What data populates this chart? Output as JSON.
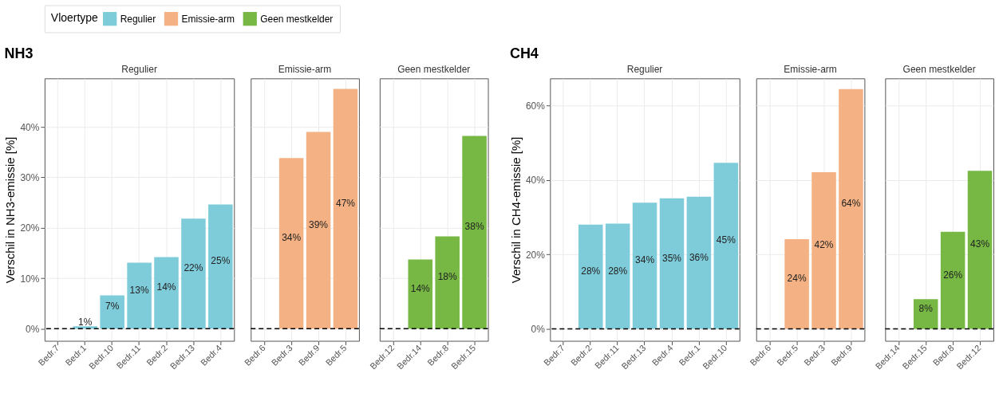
{
  "chart_data": [
    {
      "type": "bar",
      "title": "NH3",
      "ylabel": "Verschil in NH3-emissie [%]",
      "legend": "top",
      "legend_title": "Vloertype",
      "grid": true,
      "categories": [
        "Bedr.7",
        "Bedr.1",
        "Bedr.10",
        "Bedr.11",
        "Bedr.2",
        "Bedr.13",
        "Bedr.4"
      ],
      "series": [
        {
          "name": "Regulier",
          "color": "#7ecbd9",
          "values": [
            null,
            0.5,
            6.6,
            13.1,
            14.2,
            21.8,
            24.6
          ],
          "value_labels": [
            null,
            "1%",
            "7%",
            "13%",
            "14%",
            "22%",
            "25%"
          ]
        }
      ],
      "ylim": [
        -2.4,
        49.6
      ],
      "yticks": [
        {
          "value": 0,
          "label": "0%"
        },
        {
          "value": 10,
          "label": "10%"
        },
        {
          "value": 20,
          "label": "20%"
        },
        {
          "value": 30,
          "label": "30%"
        },
        {
          "value": 40,
          "label": "40%"
        }
      ],
      "ref_lines": [
        {
          "axis": "y",
          "value": 0,
          "color": "#000000",
          "line_style": "dashed"
        }
      ]
    },
    {
      "type": "bar",
      "grid": true,
      "tick_labels": "x",
      "categories": [
        "Bedr.6",
        "Bedr.3",
        "Bedr.9",
        "Bedr.5"
      ],
      "series": [
        {
          "name": "Emissie-arm",
          "color": "#f4b183",
          "values": [
            null,
            33.8,
            39.0,
            47.5
          ],
          "value_labels": [
            null,
            "34%",
            "39%",
            "47%"
          ]
        }
      ],
      "ylim": [
        -2.4,
        49.6
      ],
      "yticks": [
        {
          "value": 0,
          "label": "0%"
        },
        {
          "value": 10,
          "label": "10%"
        },
        {
          "value": 20,
          "label": "20%"
        },
        {
          "value": 30,
          "label": "30%"
        },
        {
          "value": 40,
          "label": "40%"
        }
      ],
      "ref_lines": [
        {
          "axis": "y",
          "value": 0,
          "color": "#000000",
          "line_style": "dashed"
        }
      ]
    },
    {
      "type": "bar",
      "grid": true,
      "tick_labels": "x",
      "categories": [
        "Bedr.12",
        "Bedr.14",
        "Bedr.8",
        "Bedr.15"
      ],
      "series": [
        {
          "name": "Geen mestkelder",
          "color": "#76b843",
          "values": [
            null,
            13.7,
            18.3,
            38.2
          ],
          "value_labels": [
            null,
            "14%",
            "18%",
            "38%"
          ]
        }
      ],
      "ylim": [
        -2.4,
        49.6
      ],
      "yticks": [
        {
          "value": 0,
          "label": "0%"
        },
        {
          "value": 10,
          "label": "10%"
        },
        {
          "value": 20,
          "label": "20%"
        },
        {
          "value": 30,
          "label": "30%"
        },
        {
          "value": 40,
          "label": "40%"
        }
      ],
      "ref_lines": [
        {
          "axis": "y",
          "value": 0,
          "color": "#000000",
          "line_style": "dashed"
        }
      ]
    },
    {
      "type": "bar",
      "title": "CH4",
      "ylabel": "Verschil in CH4-emissie [%]",
      "grid": true,
      "categories": [
        "Bedr.7",
        "Bedr.2",
        "Bedr.11",
        "Bedr.13",
        "Bedr.4",
        "Bedr.1",
        "Bedr.10"
      ],
      "series": [
        {
          "name": "Regulier",
          "color": "#7ecbd9",
          "values": [
            null,
            28.0,
            28.3,
            33.9,
            35.1,
            35.5,
            44.6
          ],
          "value_labels": [
            null,
            "28%",
            "28%",
            "34%",
            "35%",
            "36%",
            "45%"
          ]
        }
      ],
      "ylim": [
        -3.2,
        67.3
      ],
      "yticks": [
        {
          "value": 0,
          "label": "0%"
        },
        {
          "value": 20,
          "label": "20%"
        },
        {
          "value": 40,
          "label": "40%"
        },
        {
          "value": 60,
          "label": "60%"
        }
      ],
      "ref_lines": [
        {
          "axis": "y",
          "value": 0,
          "color": "#000000",
          "line_style": "dashed"
        }
      ]
    },
    {
      "type": "bar",
      "grid": true,
      "tick_labels": "x",
      "categories": [
        "Bedr.6",
        "Bedr.5",
        "Bedr.3",
        "Bedr.9"
      ],
      "series": [
        {
          "name": "Emissie-arm",
          "color": "#f4b183",
          "values": [
            null,
            24.1,
            42.1,
            64.4
          ],
          "value_labels": [
            null,
            "24%",
            "42%",
            "64%"
          ]
        }
      ],
      "ylim": [
        -3.2,
        67.3
      ],
      "yticks": [
        {
          "value": 0,
          "label": "0%"
        },
        {
          "value": 20,
          "label": "20%"
        },
        {
          "value": 40,
          "label": "40%"
        },
        {
          "value": 60,
          "label": "60%"
        }
      ],
      "ref_lines": [
        {
          "axis": "y",
          "value": 0,
          "color": "#000000",
          "line_style": "dashed"
        }
      ]
    },
    {
      "type": "bar",
      "grid": true,
      "tick_labels": "x",
      "categories": [
        "Bedr.14",
        "Bedr.15",
        "Bedr.8",
        "Bedr.12"
      ],
      "series": [
        {
          "name": "Geen mestkelder",
          "color": "#76b843",
          "values": [
            null,
            8.0,
            26.1,
            42.5
          ],
          "value_labels": [
            null,
            "8%",
            "26%",
            "43%"
          ]
        }
      ],
      "ylim": [
        -3.2,
        67.3
      ],
      "yticks": [
        {
          "value": 0,
          "label": "0%"
        },
        {
          "value": 20,
          "label": "20%"
        },
        {
          "value": 40,
          "label": "40%"
        },
        {
          "value": 60,
          "label": "60%"
        }
      ],
      "ref_lines": [
        {
          "axis": "y",
          "value": 0,
          "color": "#000000",
          "line_style": "dashed"
        }
      ]
    }
  ]
}
